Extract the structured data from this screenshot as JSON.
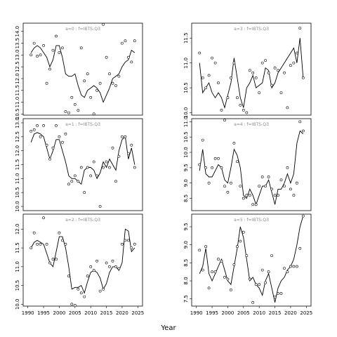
{
  "figure": {
    "xlabel": "Year"
  },
  "chart_data": [
    {
      "type": "line",
      "title": "a=0 : f=IBTS-Q3",
      "xlim": [
        1988.5,
        2026.5
      ],
      "ylim": [
        10.45,
        14.35
      ],
      "yticks": [
        "10.5",
        "11.0",
        "11.5",
        "12.0",
        "12.5",
        "13.0",
        "13.5",
        "14.0"
      ],
      "xticks": [],
      "series": [
        {
          "kind": "line",
          "x": [
            1991,
            1992,
            1993,
            1994,
            1995,
            1996,
            1997,
            1998,
            1999,
            2000,
            2001,
            2002,
            2003,
            2004,
            2005,
            2006,
            2007,
            2008,
            2009,
            2010,
            2011,
            2012,
            2013,
            2014,
            2015,
            2016,
            2017,
            2018,
            2019,
            2020,
            2021,
            2022,
            2023,
            2024
          ],
          "y": [
            13.1,
            13.3,
            13.4,
            13.3,
            13.1,
            12.9,
            12.5,
            12.8,
            13.4,
            13.4,
            12.9,
            12.2,
            12.1,
            12.1,
            12.2,
            11.7,
            11.3,
            11.2,
            11.5,
            11.6,
            11.7,
            11.6,
            11.4,
            11.0,
            11.3,
            11.6,
            12.0,
            12.1,
            12.2,
            12.5,
            12.7,
            12.8,
            13.2,
            13.1
          ]
        },
        {
          "kind": "points",
          "x": [
            1991,
            1992,
            1993,
            1994,
            1995,
            1996,
            1997,
            1998,
            1999,
            2000,
            2001,
            2002,
            2003,
            2004,
            2005,
            2006,
            2007,
            2008,
            2009,
            2010,
            2011,
            2012,
            2013,
            2014,
            2015,
            2016,
            2017,
            2018,
            2019,
            2020,
            2021,
            2022,
            2023,
            2024
          ],
          "y": [
            13.0,
            13.5,
            12.95,
            13.0,
            13.4,
            11.8,
            12.4,
            13.2,
            13.8,
            13.1,
            13.3,
            10.6,
            10.55,
            11.2,
            10.9,
            10.65,
            13.3,
            11.9,
            12.2,
            11.2,
            10.5,
            11.5,
            11.8,
            14.3,
            12.9,
            12.2,
            11.8,
            11.7,
            12.1,
            13.5,
            13.6,
            12.9,
            12.7,
            13.6
          ]
        }
      ]
    },
    {
      "type": "line",
      "title": "a=3 : f=IBTS-Q3",
      "xlim": [
        1988.5,
        2026.5
      ],
      "ylim": [
        9.95,
        11.8
      ],
      "yticks": [
        "10.0",
        "10.5",
        "11.0",
        "11.5"
      ],
      "xticks": [],
      "series": [
        {
          "kind": "line",
          "x": [
            1991,
            1992,
            1993,
            1994,
            1995,
            1996,
            1997,
            1998,
            1999,
            2000,
            2001,
            2002,
            2003,
            2004,
            2005,
            2006,
            2007,
            2008,
            2009,
            2010,
            2011,
            2012,
            2013,
            2014,
            2015,
            2016,
            2017,
            2018,
            2019,
            2020,
            2021,
            2022,
            2023,
            2024
          ],
          "y": [
            11.0,
            10.4,
            10.5,
            10.6,
            10.4,
            10.3,
            10.4,
            10.3,
            10.1,
            10.35,
            10.6,
            11.1,
            10.7,
            10.3,
            10.1,
            10.5,
            10.6,
            10.75,
            10.5,
            10.55,
            10.6,
            10.9,
            10.85,
            10.5,
            10.6,
            10.8,
            10.9,
            11.0,
            11.1,
            11.2,
            11.3,
            11.0,
            11.5,
            10.7
          ]
        },
        {
          "kind": "points",
          "x": [
            1991,
            1992,
            1993,
            1994,
            1995,
            1996,
            1997,
            1998,
            1999,
            2000,
            2001,
            2002,
            2003,
            2004,
            2005,
            2006,
            2007,
            2008,
            2009,
            2010,
            2011,
            2012,
            2013,
            2014,
            2015,
            2016,
            2017,
            2018,
            2019,
            2020,
            2021,
            2022,
            2023,
            2024
          ],
          "y": [
            11.2,
            10.7,
            10.5,
            10.75,
            11.1,
            11.0,
            10.6,
            10.05,
            9.85,
            10.3,
            10.7,
            11.0,
            10.3,
            10.15,
            10.05,
            10.0,
            10.85,
            10.8,
            10.7,
            10.4,
            11.0,
            11.05,
            10.8,
            10.55,
            10.9,
            10.85,
            10.4,
            10.8,
            10.1,
            10.95,
            11.0,
            11.2,
            11.7,
            10.7
          ]
        }
      ]
    },
    {
      "type": "line",
      "title": "a=1 : f=IBTS-Q3",
      "xlim": [
        1988.5,
        2026.5
      ],
      "ylim": [
        9.85,
        13.15
      ],
      "yticks": [
        "10.0",
        "10.5",
        "11.0",
        "11.5",
        "12.0",
        "12.5",
        "13.0"
      ],
      "xticks": [],
      "series": [
        {
          "kind": "line",
          "x": [
            1991,
            1992,
            1993,
            1994,
            1995,
            1996,
            1997,
            1998,
            1999,
            2000,
            2001,
            2002,
            2003,
            2004,
            2005,
            2006,
            2007,
            2008,
            2009,
            2010,
            2011,
            2012,
            2013,
            2014,
            2015,
            2016,
            2017,
            2018,
            2019,
            2020,
            2021,
            2022,
            2023,
            2024
          ],
          "y": [
            12.3,
            12.6,
            12.65,
            12.6,
            12.5,
            12.1,
            11.7,
            12.0,
            12.4,
            12.4,
            12.0,
            11.6,
            11.1,
            11.0,
            11.0,
            10.9,
            10.8,
            11.3,
            11.4,
            11.4,
            11.3,
            11.0,
            11.2,
            11.6,
            11.4,
            11.7,
            11.5,
            11.3,
            12.0,
            12.4,
            12.5,
            11.7,
            12.1,
            11.5
          ]
        },
        {
          "kind": "points",
          "x": [
            1991,
            1992,
            1993,
            1994,
            1995,
            1996,
            1997,
            1998,
            1999,
            2000,
            2001,
            2002,
            2003,
            2004,
            2005,
            2006,
            2007,
            2008,
            2009,
            2010,
            2011,
            2012,
            2013,
            2014,
            2015,
            2016,
            2017,
            2018,
            2019,
            2020,
            2021,
            2022,
            2023,
            2024
          ],
          "y": [
            12.7,
            12.75,
            12.9,
            12.5,
            12.9,
            12.2,
            11.7,
            12.1,
            12.9,
            12.5,
            12.3,
            12.6,
            10.8,
            10.9,
            11.1,
            10.9,
            11.4,
            10.5,
            11.4,
            11.1,
            11.6,
            11.1,
            10.0,
            11.4,
            11.6,
            11.4,
            12.1,
            10.9,
            11.8,
            12.5,
            12.5,
            11.9,
            12.2,
            11.4
          ]
        }
      ]
    },
    {
      "type": "line",
      "title": "a=4 : f=IBTS-Q3",
      "xlim": [
        1988.5,
        2026.5
      ],
      "ylim": [
        8.1,
        11.1
      ],
      "yticks": [
        "8.5",
        "9.0",
        "9.5",
        "10.0",
        "10.5",
        "11.0"
      ],
      "xticks": [],
      "series": [
        {
          "kind": "line",
          "x": [
            1991,
            1992,
            1993,
            1994,
            1995,
            1996,
            1997,
            1998,
            1999,
            2000,
            2001,
            2002,
            2003,
            2004,
            2005,
            2006,
            2007,
            2008,
            2009,
            2010,
            2011,
            2012,
            2013,
            2014,
            2015,
            2016,
            2017,
            2018,
            2019,
            2020,
            2021,
            2022,
            2023,
            2024
          ],
          "y": [
            9.4,
            10.1,
            9.3,
            9.2,
            9.2,
            9.4,
            9.6,
            9.5,
            9.1,
            9.0,
            9.5,
            10.1,
            9.9,
            9.5,
            8.6,
            8.5,
            8.8,
            8.6,
            8.3,
            8.6,
            8.9,
            8.9,
            9.1,
            8.7,
            8.3,
            8.8,
            8.8,
            9.0,
            9.3,
            9.0,
            9.3,
            10.3,
            10.7,
            10.6
          ]
        },
        {
          "kind": "points",
          "x": [
            1991,
            1992,
            1993,
            1994,
            1995,
            1996,
            1997,
            1998,
            1999,
            2000,
            2001,
            2002,
            2003,
            2004,
            2005,
            2006,
            2007,
            2008,
            2009,
            2010,
            2011,
            2012,
            2013,
            2014,
            2015,
            2016,
            2017,
            2018,
            2019,
            2020,
            2021,
            2022,
            2023,
            2024
          ],
          "y": [
            9.6,
            10.4,
            9.5,
            9.0,
            9.5,
            9.8,
            9.8,
            9.5,
            8.9,
            8.7,
            9.0,
            10.3,
            9.7,
            8.9,
            8.5,
            8.6,
            8.6,
            8.3,
            8.3,
            8.9,
            9.2,
            8.9,
            9.2,
            8.8,
            8.6,
            8.6,
            9.1,
            8.9,
            9.5,
            8.8,
            8.6,
            9.0,
            11.0,
            10.7
          ]
        }
      ]
    },
    {
      "type": "line",
      "title": "a=2 : f=IBTS-Q3",
      "xlim": [
        1988.5,
        2026.5
      ],
      "ylim": [
        9.95,
        12.4
      ],
      "yticks": [
        "10.0",
        "10.5",
        "11.0",
        "11.5",
        "12.0"
      ],
      "xticks": [
        "1990",
        "1995",
        "2000",
        "2005",
        "2010",
        "2015",
        "2020",
        "2025"
      ],
      "series": [
        {
          "kind": "line",
          "x": [
            1991,
            1992,
            1993,
            1994,
            1995,
            1996,
            1997,
            1998,
            1999,
            2000,
            2001,
            2002,
            2003,
            2004,
            2005,
            2006,
            2007,
            2008,
            2009,
            2010,
            2011,
            2012,
            2013,
            2014,
            2015,
            2016,
            2017,
            2018,
            2019,
            2020,
            2021,
            2022,
            2023,
            2024
          ],
          "y": [
            11.5,
            11.65,
            11.7,
            11.65,
            11.6,
            11.35,
            11.1,
            11.0,
            11.4,
            11.8,
            11.8,
            11.5,
            11.0,
            10.4,
            10.45,
            10.45,
            10.5,
            10.3,
            10.6,
            10.85,
            10.9,
            10.85,
            10.7,
            10.4,
            10.55,
            10.85,
            11.0,
            11.0,
            10.9,
            11.1,
            12.0,
            11.95,
            11.4,
            11.5
          ]
        },
        {
          "kind": "points",
          "x": [
            1991,
            1992,
            1993,
            1994,
            1995,
            1996,
            1997,
            1998,
            1999,
            2000,
            2001,
            2002,
            2003,
            2004,
            2005,
            2006,
            2007,
            2008,
            2009,
            2010,
            2011,
            2012,
            2013,
            2014,
            2015,
            2016,
            2017,
            2018,
            2019,
            2020,
            2021,
            2022,
            2023,
            2024
          ],
          "y": [
            11.5,
            11.9,
            11.6,
            11.6,
            12.3,
            11.6,
            11.1,
            11.2,
            11.2,
            11.9,
            11.7,
            11.6,
            10.75,
            10.0,
            9.97,
            10.4,
            10.3,
            10.2,
            10.75,
            11.0,
            10.9,
            11.15,
            10.35,
            10.4,
            11.1,
            11.0,
            11.15,
            11.0,
            10.95,
            11.6,
            11.7,
            11.7,
            11.5,
            11.6
          ]
        }
      ]
    },
    {
      "type": "line",
      "title": "a=5 : f=IBTS-Q3",
      "xlim": [
        1988.5,
        2026.5
      ],
      "ylim": [
        7.3,
        9.85
      ],
      "yticks": [
        "7.5",
        "8.0",
        "8.5",
        "9.0",
        "9.5"
      ],
      "xticks": [
        "1990",
        "1995",
        "2000",
        "2005",
        "2010",
        "2015",
        "2020",
        "2025"
      ],
      "series": [
        {
          "kind": "line",
          "x": [
            1991,
            1992,
            1993,
            1994,
            1995,
            1996,
            1997,
            1998,
            1999,
            2000,
            2001,
            2002,
            2003,
            2004,
            2005,
            2006,
            2007,
            2008,
            2009,
            2010,
            2011,
            2012,
            2013,
            2014,
            2015,
            2016,
            2017,
            2018,
            2019,
            2020,
            2021,
            2022,
            2023,
            2024
          ],
          "y": [
            8.2,
            8.4,
            8.9,
            8.2,
            8.0,
            8.2,
            8.4,
            8.6,
            8.3,
            8.0,
            7.9,
            8.4,
            8.9,
            9.5,
            9.2,
            8.6,
            8.0,
            8.1,
            7.9,
            7.8,
            7.6,
            8.0,
            8.2,
            7.8,
            7.4,
            7.8,
            8.0,
            8.1,
            8.3,
            8.4,
            8.6,
            9.0,
            9.5,
            9.8
          ]
        },
        {
          "kind": "points",
          "x": [
            1991,
            1992,
            1993,
            1994,
            1995,
            1996,
            1997,
            1998,
            1999,
            2000,
            2001,
            2002,
            2003,
            2004,
            2005,
            2006,
            2007,
            2008,
            2009,
            2010,
            2011,
            2012,
            2013,
            2014,
            2015,
            2016,
            2017,
            2018,
            2019,
            2020,
            2021,
            2022,
            2023,
            2024
          ],
          "y": [
            8.85,
            8.3,
            8.95,
            7.8,
            8.25,
            8.25,
            8.6,
            8.55,
            8.1,
            8.05,
            7.75,
            8.45,
            8.95,
            9.1,
            9.35,
            8.7,
            8.05,
            7.4,
            7.9,
            7.9,
            8.3,
            7.95,
            8.25,
            8.7,
            7.55,
            7.65,
            7.65,
            8.35,
            8.25,
            8.4,
            8.4,
            8.4,
            8.9,
            9.8
          ]
        }
      ]
    }
  ]
}
